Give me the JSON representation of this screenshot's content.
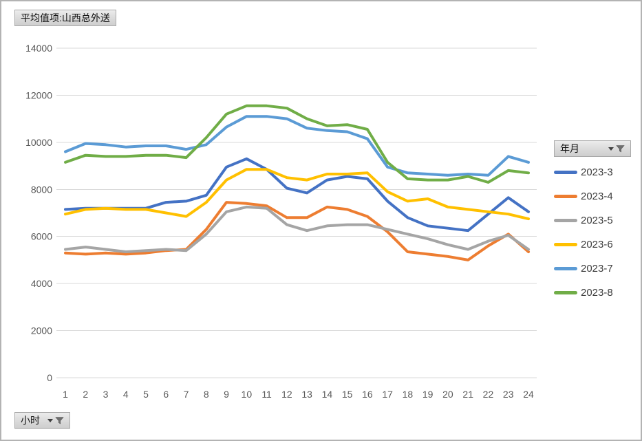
{
  "page": {
    "background": "#ffffff",
    "border_color": "#b3b3b3"
  },
  "pivot_fields": {
    "value_button": {
      "label": "平均值项:山西总外送"
    },
    "legend_button": {
      "label": "年月",
      "icons": [
        "dropdown-arrow",
        "filter-funnel"
      ]
    },
    "axis_button": {
      "label": "小时",
      "icons": [
        "dropdown-arrow",
        "filter-funnel"
      ]
    }
  },
  "icons": {
    "dropdown_arrow": "triangle-down",
    "filter_funnel": "funnel"
  },
  "colors": {
    "gridline": "#d9d9d9",
    "axis_text": "#595959",
    "legend_text": "#3d3d3d"
  },
  "chart_data": {
    "type": "line",
    "title": "平均值项:山西总外送",
    "legend_title": "年月",
    "legend_position": "right",
    "x_field": "小时",
    "x": [
      1,
      2,
      3,
      4,
      5,
      6,
      7,
      8,
      9,
      10,
      11,
      12,
      13,
      14,
      15,
      16,
      17,
      18,
      19,
      20,
      21,
      22,
      23,
      24
    ],
    "ylim": [
      0,
      14000
    ],
    "yticks": [
      0,
      2000,
      4000,
      6000,
      8000,
      10000,
      12000,
      14000
    ],
    "grid": true,
    "series": [
      {
        "name": "2023-3",
        "color": "#4472C4",
        "values": [
          7150,
          7200,
          7200,
          7200,
          7200,
          7450,
          7500,
          7750,
          8950,
          9300,
          8850,
          8050,
          7850,
          8400,
          8550,
          8450,
          7500,
          6800,
          6450,
          6350,
          6250,
          6950,
          7650,
          7050
        ]
      },
      {
        "name": "2023-4",
        "color": "#ED7D31",
        "values": [
          5300,
          5250,
          5300,
          5250,
          5300,
          5400,
          5450,
          6300,
          7450,
          7400,
          7300,
          6800,
          6800,
          7250,
          7150,
          6850,
          6200,
          5350,
          5250,
          5150,
          5000,
          5600,
          6100,
          5350
        ]
      },
      {
        "name": "2023-5",
        "color": "#A5A5A5",
        "values": [
          5450,
          5550,
          5450,
          5350,
          5400,
          5450,
          5400,
          6100,
          7050,
          7250,
          7200,
          6500,
          6250,
          6450,
          6500,
          6500,
          6300,
          6100,
          5900,
          5650,
          5450,
          5800,
          6050,
          5450
        ]
      },
      {
        "name": "2023-6",
        "color": "#FFC000",
        "values": [
          6950,
          7150,
          7200,
          7150,
          7150,
          7000,
          6850,
          7450,
          8400,
          8850,
          8850,
          8500,
          8400,
          8650,
          8650,
          8700,
          7900,
          7500,
          7600,
          7250,
          7150,
          7050,
          6950,
          6750
        ]
      },
      {
        "name": "2023-7",
        "color": "#5B9BD5",
        "values": [
          9600,
          9950,
          9900,
          9800,
          9850,
          9850,
          9700,
          9900,
          10650,
          11100,
          11100,
          11000,
          10600,
          10500,
          10450,
          10150,
          8950,
          8700,
          8650,
          8600,
          8650,
          8600,
          9400,
          9150
        ]
      },
      {
        "name": "2023-8",
        "color": "#70AD47",
        "values": [
          9150,
          9450,
          9400,
          9400,
          9450,
          9450,
          9350,
          10200,
          11200,
          11550,
          11550,
          11450,
          11000,
          10700,
          10750,
          10550,
          9150,
          8450,
          8400,
          8400,
          8550,
          8300,
          8800,
          8700
        ]
      }
    ]
  }
}
